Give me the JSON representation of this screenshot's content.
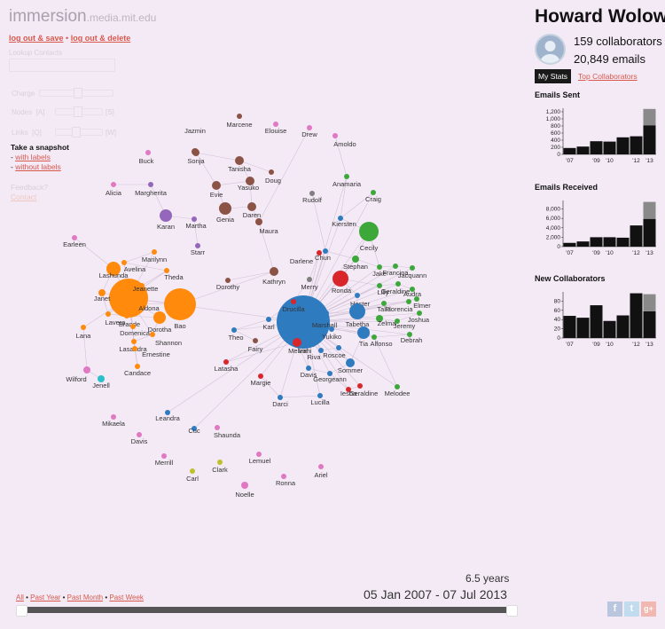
{
  "brand": {
    "name": "immersion",
    "domain": ".media.mit.edu"
  },
  "account": {
    "logout_save": "log out & save",
    "logout_delete": "log out & delete"
  },
  "lookup": {
    "label": "Lookup Contacts",
    "value": ""
  },
  "controls": {
    "charge": "Charge",
    "nodes": "Nodes",
    "nodes_dec": "[A]",
    "nodes_inc": "[S]",
    "links": "Links",
    "links_dec": "[Q]",
    "links_inc": "[W]"
  },
  "snapshot": {
    "title": "Take a snapshot",
    "with_labels": "with labels",
    "without_labels": "without labels"
  },
  "feedback": {
    "title": "Feedback?",
    "link": "Contact"
  },
  "user": {
    "name": "Howard Wolowitz",
    "collaborators": "159 collaborators",
    "emails": "20,849 emails"
  },
  "tabs": {
    "my_stats": "My Stats",
    "top_collaborators": "Top Collaborators"
  },
  "colors": {
    "blue": "#2f7bbf",
    "orange": "#ff8a0c",
    "green": "#3da83a",
    "red": "#d9262b",
    "brown": "#8b5346",
    "purple": "#9467bd",
    "pink": "#e078c2",
    "olive": "#bdc12c",
    "gray": "#7f7f7f",
    "cyan": "#2bbfcc"
  },
  "stats_charts": [
    {
      "title": "Emails Sent",
      "ticks": [
        "1,200",
        "1,000",
        "800",
        "600",
        "400",
        "200",
        "0"
      ],
      "tick_values": [
        1200,
        1000,
        800,
        600,
        400,
        200,
        0
      ],
      "max": 1300,
      "x_labels": [
        "'07",
        "'09",
        "'10",
        "'12",
        "'13"
      ],
      "values": [
        180,
        220,
        370,
        360,
        480,
        510,
        820
      ],
      "highlight": [
        0,
        0,
        0,
        0,
        0,
        0,
        460
      ]
    },
    {
      "title": "Emails Received",
      "ticks": [
        "8,000",
        "6,000",
        "4,000",
        "2,000",
        "0"
      ],
      "tick_values": [
        8000,
        6000,
        4000,
        2000,
        0
      ],
      "max": 9800,
      "x_labels": [
        "'07",
        "'09",
        "'10",
        "'12",
        "'13"
      ],
      "values": [
        800,
        1100,
        2000,
        2000,
        1900,
        4500,
        5900
      ],
      "highlight": [
        0,
        0,
        0,
        0,
        0,
        0,
        3600
      ]
    },
    {
      "title": "New Collaborators",
      "ticks": [
        "80",
        "60",
        "40",
        "20",
        "0"
      ],
      "tick_values": [
        80,
        60,
        40,
        20,
        0
      ],
      "max": 100,
      "x_labels": [
        "'07",
        "'09",
        "'10",
        "'12",
        "'13"
      ],
      "values": [
        48,
        44,
        71,
        37,
        49,
        97,
        58
      ],
      "highlight": [
        0,
        0,
        0,
        0,
        0,
        0,
        37
      ]
    }
  ],
  "timeline": {
    "duration": "6.5 years",
    "range": "05 Jan 2007 - 07 Jul 2013",
    "all": "All",
    "past_year": "Past Year",
    "past_month": "Past Month",
    "past_week": "Past Week"
  },
  "network": {
    "nodes": [
      {
        "label": "Jazmin",
        "c": "brown"
      },
      {
        "label": "Marcene",
        "c": "brown"
      },
      {
        "label": "Elouise",
        "c": "pink"
      },
      {
        "label": "Drew",
        "c": "pink"
      },
      {
        "label": "Amoldo",
        "c": "pink"
      },
      {
        "label": "Buck",
        "c": "pink"
      },
      {
        "label": "Sonja",
        "c": "brown"
      },
      {
        "label": "Tanisha",
        "c": "brown"
      },
      {
        "label": "Doug",
        "c": "brown"
      },
      {
        "label": "Yasuko",
        "c": "brown"
      },
      {
        "label": "Anamaria",
        "c": "green"
      },
      {
        "label": "Craig",
        "c": "green"
      },
      {
        "label": "Alicia",
        "c": "pink"
      },
      {
        "label": "Margherita",
        "c": "purple"
      },
      {
        "label": "Evie",
        "c": "brown"
      },
      {
        "label": "Genia",
        "c": "brown"
      },
      {
        "label": "Daren",
        "c": "brown"
      },
      {
        "label": "Rudolf",
        "c": "gray"
      },
      {
        "label": "Karan",
        "c": "purple"
      },
      {
        "label": "Martha",
        "c": "purple"
      },
      {
        "label": "Maura",
        "c": "brown"
      },
      {
        "label": "Kiersten",
        "c": "blue"
      },
      {
        "label": "Cecily",
        "c": "green"
      },
      {
        "label": "Earleen",
        "c": "pink"
      },
      {
        "label": "Starr",
        "c": "purple"
      },
      {
        "label": "Marilynn",
        "c": "orange"
      },
      {
        "label": "Darlene",
        "c": "red"
      },
      {
        "label": "Chun",
        "c": "blue"
      },
      {
        "label": "Stephan",
        "c": "green"
      },
      {
        "label": "Avelina",
        "c": "orange"
      },
      {
        "label": "Lashunda",
        "c": "orange"
      },
      {
        "label": "Theda",
        "c": "orange"
      },
      {
        "label": "Jeanette",
        "c": "orange"
      },
      {
        "label": "Dorothy",
        "c": "brown"
      },
      {
        "label": "Kathryn",
        "c": "brown"
      },
      {
        "label": "Merry",
        "c": "gray"
      },
      {
        "label": "Ronda",
        "c": "red"
      },
      {
        "label": "Jake",
        "c": "green"
      },
      {
        "label": "Francina",
        "c": "green"
      },
      {
        "label": "Jacquann",
        "c": "green"
      },
      {
        "label": "Janet",
        "c": "orange"
      },
      {
        "label": "Lilly",
        "c": "green"
      },
      {
        "label": "Geraldine",
        "c": "green"
      },
      {
        "label": "Audra",
        "c": "green"
      },
      {
        "label": "Hester",
        "c": "blue"
      },
      {
        "label": "Elmer",
        "c": "green"
      },
      {
        "label": "Aldona",
        "c": "orange"
      },
      {
        "label": "Bao",
        "c": "orange"
      },
      {
        "label": "Drucilla",
        "c": "red"
      },
      {
        "label": "Tabetha",
        "c": "blue"
      },
      {
        "label": "Talia",
        "c": "green"
      },
      {
        "label": "Florencia",
        "c": "green"
      },
      {
        "label": "Joshua",
        "c": "green"
      },
      {
        "label": "Lavera",
        "c": "orange"
      },
      {
        "label": "Brande",
        "c": "orange"
      },
      {
        "label": "Dorotha",
        "c": "orange"
      },
      {
        "label": "Domenica",
        "c": "orange"
      },
      {
        "label": "Karl",
        "c": "blue"
      },
      {
        "label": "Marshall",
        "c": "blue"
      },
      {
        "label": "Zelma",
        "c": "green"
      },
      {
        "label": "Jeremy",
        "c": "green"
      },
      {
        "label": "Lana",
        "c": "orange"
      },
      {
        "label": "Shannon",
        "c": "orange"
      },
      {
        "label": "Theo",
        "c": "blue"
      },
      {
        "label": "Yukiko",
        "c": "blue"
      },
      {
        "label": "Tia",
        "c": "blue"
      },
      {
        "label": "Alfonso",
        "c": "green"
      },
      {
        "label": "Debrah",
        "c": "green"
      },
      {
        "label": "Lasandra",
        "c": "orange"
      },
      {
        "label": "Fairy",
        "c": "brown"
      },
      {
        "label": "Melvin",
        "c": "red"
      },
      {
        "label": "Ernestine",
        "c": "orange"
      },
      {
        "label": "Irahi",
        "c": "blue"
      },
      {
        "label": "Riva",
        "c": "blue"
      },
      {
        "label": "Roscoe",
        "c": "blue"
      },
      {
        "label": "Latasha",
        "c": "red"
      },
      {
        "label": "Candace",
        "c": "orange"
      },
      {
        "label": "Sommer",
        "c": "blue"
      },
      {
        "label": "Wilford",
        "c": "pink"
      },
      {
        "label": "Jenell",
        "c": "cyan"
      },
      {
        "label": "Davis",
        "c": "blue"
      },
      {
        "label": "Margie",
        "c": "red"
      },
      {
        "label": "Georgeann",
        "c": "blue"
      },
      {
        "label": "Iesha",
        "c": "red"
      },
      {
        "label": "Geraldine",
        "c": "red"
      },
      {
        "label": "Melodee",
        "c": "green"
      },
      {
        "label": "Darci",
        "c": "blue"
      },
      {
        "label": "Lucilla",
        "c": "blue"
      },
      {
        "label": "Leandra",
        "c": "blue"
      },
      {
        "label": "Mikaela",
        "c": "pink"
      },
      {
        "label": "Cuc",
        "c": "blue"
      },
      {
        "label": "Shaunda",
        "c": "pink"
      },
      {
        "label": "Davis",
        "c": "pink"
      },
      {
        "label": "Merrill",
        "c": "pink"
      },
      {
        "label": "Lemuel",
        "c": "pink"
      },
      {
        "label": "Clark",
        "c": "olive"
      },
      {
        "label": "Ariel",
        "c": "pink"
      },
      {
        "label": "Carl",
        "c": "olive"
      },
      {
        "label": "Ronna",
        "c": "pink"
      },
      {
        "label": "Noelle",
        "c": "pink"
      }
    ]
  }
}
